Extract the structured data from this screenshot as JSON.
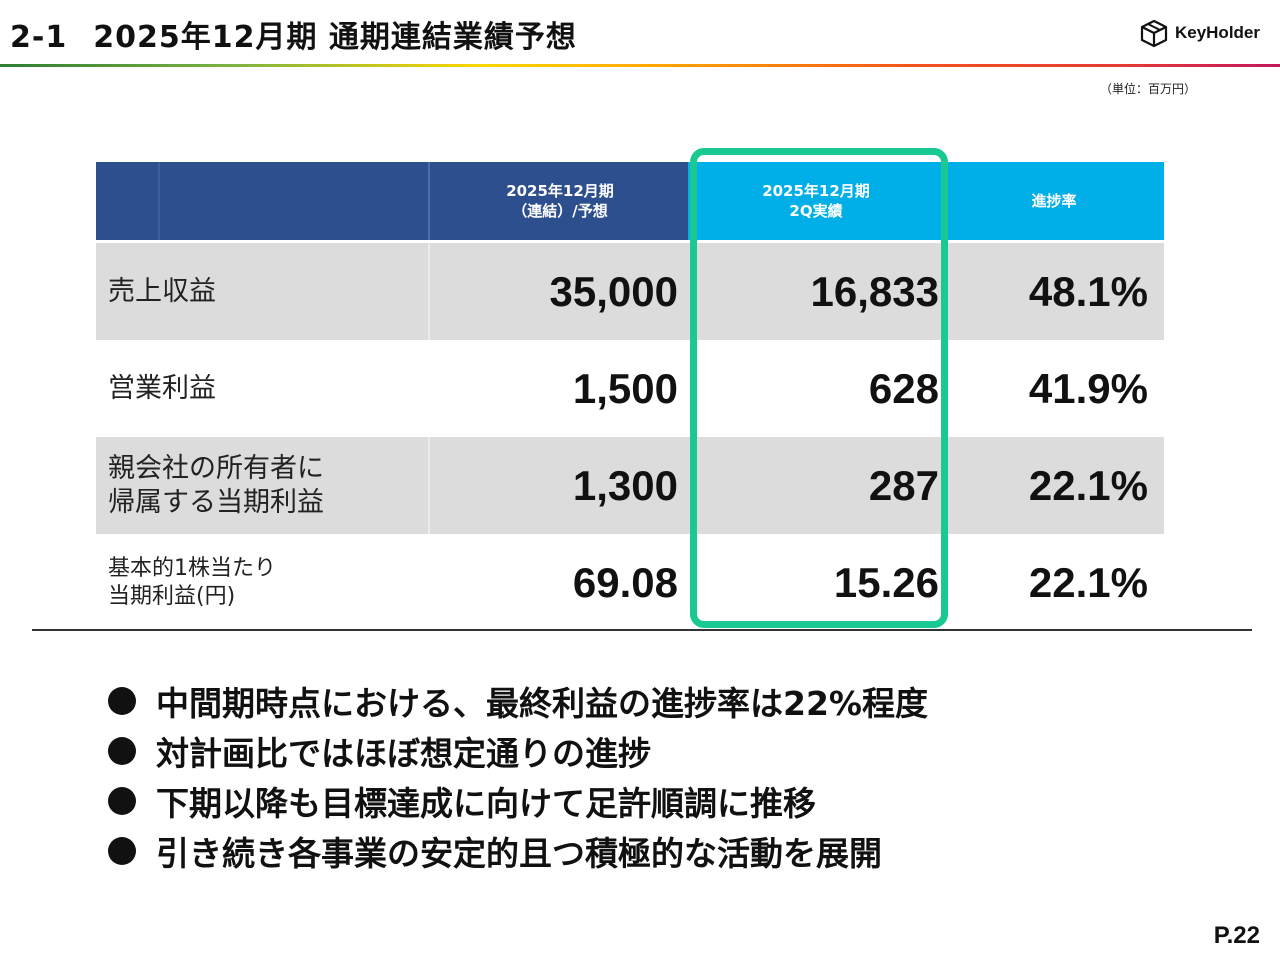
{
  "header": {
    "section_number": "2-1",
    "title": "2025年12月期 通期連結業績予想",
    "logo_text": "KeyHolder",
    "logo_icon": "cube-icon"
  },
  "unit_note": "（単位：百万円）",
  "table": {
    "columns": [
      "",
      "",
      [
        "2025年12月期",
        "（連結）/予想"
      ],
      [
        "2025年12月期",
        "2Q実績"
      ],
      "進捗率"
    ],
    "rows": [
      {
        "label": [
          "売上収益"
        ],
        "forecast": "35,000",
        "actual": "16,833",
        "progress": "48.1%"
      },
      {
        "label": [
          "営業利益"
        ],
        "forecast": "1,500",
        "actual": "628",
        "progress": "41.9%"
      },
      {
        "label": [
          "親会社の所有者に",
          "帰属する当期利益"
        ],
        "forecast": "1,300",
        "actual": "287",
        "progress": "22.1%"
      },
      {
        "label": [
          "基本的1株当たり",
          "当期利益(円)"
        ],
        "forecast": "69.08",
        "actual": "15.26",
        "progress": "22.1%"
      }
    ]
  },
  "colors": {
    "header_navy": "#2d4f8e",
    "header_cyan": "#00aee8",
    "highlight_green": "#19c893",
    "row_gray": "#dcdcdc"
  },
  "bullets": [
    "中間期時点における、最終利益の進捗率は22%程度",
    "対計画比ではほぼ想定通りの進捗",
    "下期以降も目標達成に向けて足許順調に推移",
    "引き続き各事業の安定的且つ積極的な活動を展開"
  ],
  "page_number": "P.22"
}
